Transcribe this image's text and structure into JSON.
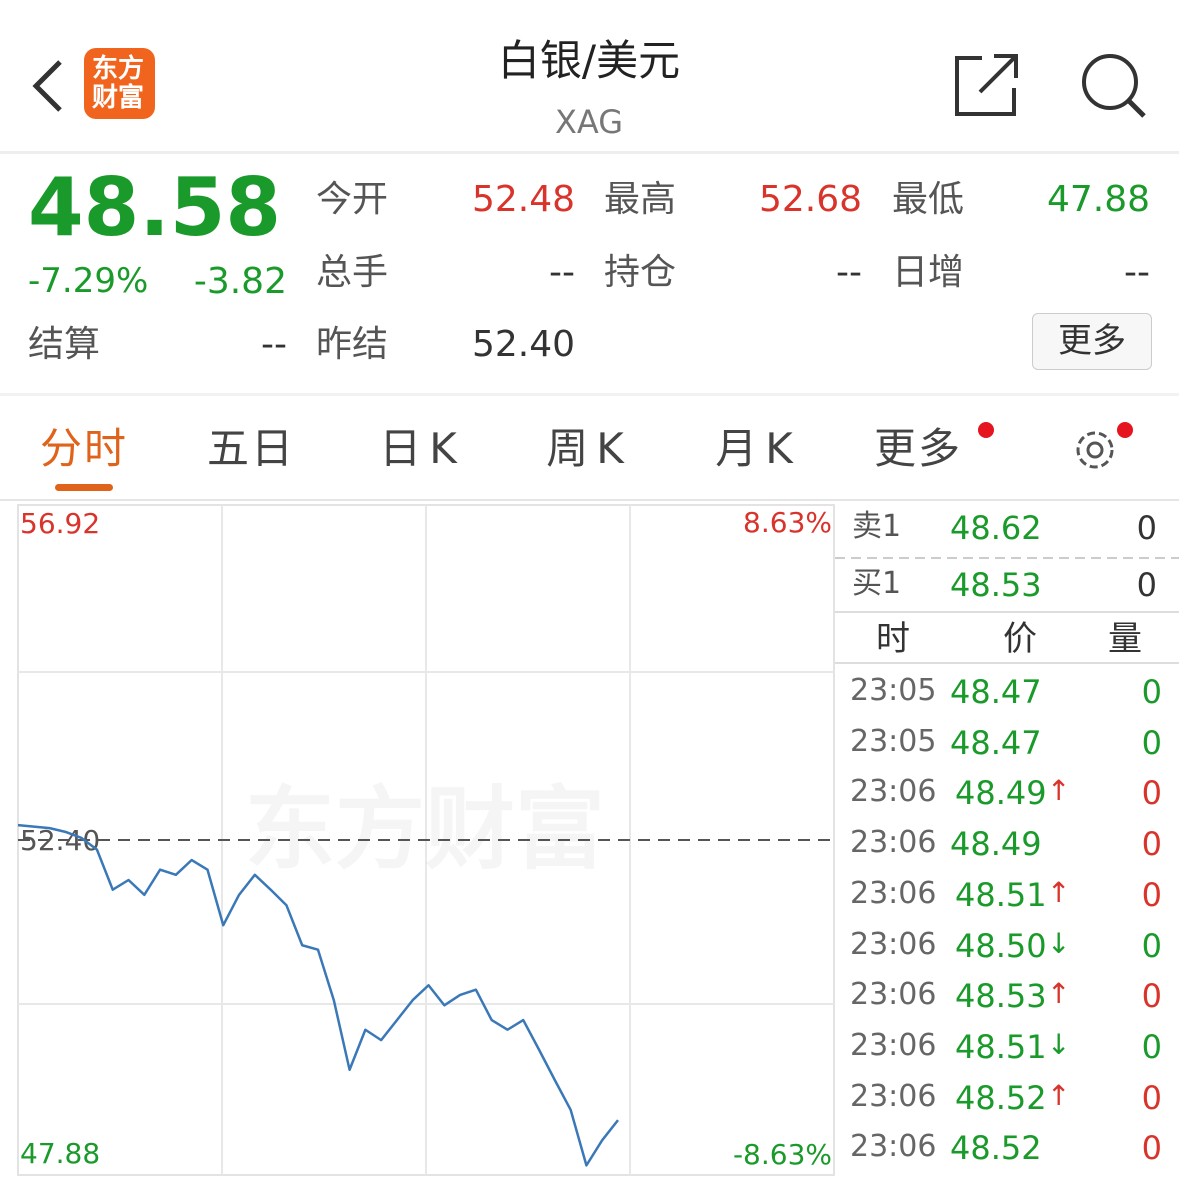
{
  "header": {
    "title": "白银/美元",
    "subtitle": "XAG",
    "logo": [
      "东方",
      "财富"
    ]
  },
  "quote": {
    "price": "48.58",
    "change_pct": "-7.29%",
    "change": "-3.82",
    "settle": {
      "label": "结算",
      "value": "--"
    },
    "fields": [
      [
        {
          "label": "今开",
          "value": "52.48",
          "color": "#d9342b"
        },
        {
          "label": "最高",
          "value": "52.68",
          "color": "#d9342b"
        },
        {
          "label": "最低",
          "value": "47.88",
          "color": "#1a9a2a"
        }
      ],
      [
        {
          "label": "总手",
          "value": "--",
          "color": "#333333"
        },
        {
          "label": "持仓",
          "value": "--",
          "color": "#333333"
        },
        {
          "label": "日增",
          "value": "--",
          "color": "#333333"
        }
      ],
      [
        {
          "label": "昨结",
          "value": "52.40",
          "color": "#333333"
        }
      ]
    ],
    "more": "更多"
  },
  "tabs": [
    "分时",
    "五日",
    "日K",
    "周K",
    "月K",
    "更多"
  ],
  "chart": {
    "type": "line",
    "watermark": "东方财富",
    "ylim": [
      47.88,
      56.92
    ],
    "yticks": [
      56.92,
      {
        "value": 52.4,
        "label": "52.40"
      },
      47.88
    ],
    "right_labels": [
      "8.63%",
      "-8.63%"
    ],
    "color": "#3a78b8",
    "values": [
      52.6,
      52.58,
      52.56,
      52.51,
      52.43,
      52.27,
      51.73,
      51.86,
      51.66,
      52.0,
      51.93,
      52.13,
      52.0,
      51.25,
      51.66,
      51.93,
      51.73,
      51.52,
      50.98,
      50.92,
      50.24,
      49.3,
      49.84,
      49.7,
      49.97,
      50.24,
      50.44,
      50.17,
      50.31,
      50.38,
      49.97,
      49.84,
      49.97,
      49.57,
      49.16,
      48.76,
      48.01,
      48.35,
      48.62
    ]
  },
  "book": [
    {
      "label": "卖1",
      "price": "48.62",
      "vol": "0"
    },
    {
      "label": "买1",
      "price": "48.53",
      "vol": "0"
    }
  ],
  "trades": {
    "headers": [
      "时",
      "价",
      "量"
    ],
    "rows": [
      {
        "time": "23:05",
        "price": "48.47",
        "vol": "0",
        "vol_color": "#1a9a2a"
      },
      {
        "time": "23:05",
        "price": "48.47",
        "vol": "0",
        "vol_color": "#1a9a2a"
      },
      {
        "time": "23:06",
        "price": "48.49",
        "arrow": "↑",
        "vol": "0",
        "vol_color": "#d9342b"
      },
      {
        "time": "23:06",
        "price": "48.49",
        "vol": "0",
        "vol_color": "#d9342b"
      },
      {
        "time": "23:06",
        "price": "48.51",
        "arrow": "↑",
        "vol": "0",
        "vol_color": "#d9342b"
      },
      {
        "time": "23:06",
        "price": "48.50",
        "arrow": "↓",
        "vol": "0",
        "vol_color": "#1a9a2a"
      },
      {
        "time": "23:06",
        "price": "48.53",
        "arrow": "↑",
        "vol": "0",
        "vol_color": "#d9342b"
      },
      {
        "time": "23:06",
        "price": "48.51",
        "arrow": "↓",
        "vol": "0",
        "vol_color": "#1a9a2a"
      },
      {
        "time": "23:06",
        "price": "48.52",
        "arrow": "↑",
        "vol": "0",
        "vol_color": "#d9342b"
      },
      {
        "time": "23:06",
        "price": "48.52",
        "vol": "0",
        "vol_color": "#d9342b"
      }
    ]
  }
}
